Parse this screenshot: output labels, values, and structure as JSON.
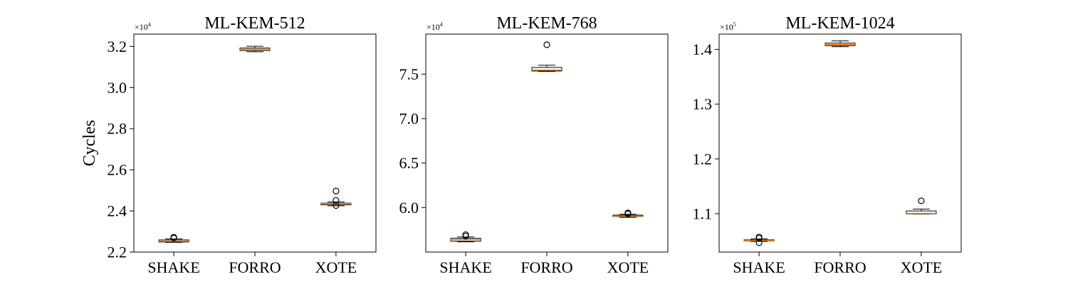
{
  "chart_data": [
    {
      "type": "box",
      "title": "ML-KEM-512",
      "ylabel": "Cycles",
      "multiplier": {
        "base": "×10",
        "exp": "4"
      },
      "categories": [
        "SHAKE",
        "FORRO",
        "XOTE"
      ],
      "ylim": [
        2.2,
        3.26
      ],
      "yticks": [
        2.2,
        2.4,
        2.6,
        2.8,
        3.0,
        3.2
      ],
      "ytick_labels": [
        "2.2",
        "2.4",
        "2.6",
        "2.8",
        "3.0",
        "3.2"
      ],
      "boxes": [
        {
          "category": "SHAKE",
          "whislo": 2.247,
          "q1": 2.249,
          "med": 2.253,
          "q3": 2.259,
          "whishi": 2.264,
          "fliers": [
            2.268,
            2.272
          ]
        },
        {
          "category": "FORRO",
          "whislo": 3.174,
          "q1": 3.18,
          "med": 3.186,
          "q3": 3.192,
          "whishi": 3.201,
          "fliers": []
        },
        {
          "category": "XOTE",
          "whislo": 2.425,
          "q1": 2.43,
          "med": 2.435,
          "q3": 2.438,
          "whishi": 2.444,
          "fliers": [
            2.426,
            2.451,
            2.497
          ]
        }
      ]
    },
    {
      "type": "box",
      "title": "ML-KEM-768",
      "ylabel": "",
      "multiplier": {
        "base": "×10",
        "exp": "4"
      },
      "categories": [
        "SHAKE",
        "FORRO",
        "XOTE"
      ],
      "ylim": [
        5.5,
        7.95
      ],
      "yticks": [
        6.0,
        6.5,
        7.0,
        7.5
      ],
      "ytick_labels": [
        "6.0",
        "6.5",
        "7.0",
        "7.5"
      ],
      "boxes": [
        {
          "category": "SHAKE",
          "whislo": 5.615,
          "q1": 5.622,
          "med": 5.64,
          "q3": 5.655,
          "whishi": 5.67,
          "fliers": [
            5.68,
            5.695
          ]
        },
        {
          "category": "FORRO",
          "whislo": 7.53,
          "q1": 7.535,
          "med": 7.545,
          "q3": 7.575,
          "whishi": 7.6,
          "fliers": [
            7.83
          ]
        },
        {
          "category": "XOTE",
          "whislo": 5.89,
          "q1": 5.9,
          "med": 5.905,
          "q3": 5.915,
          "whishi": 5.925,
          "fliers": [
            5.93,
            5.94
          ]
        }
      ]
    },
    {
      "type": "box",
      "title": "ML-KEM-1024",
      "ylabel": "",
      "multiplier": {
        "base": "×10",
        "exp": "5"
      },
      "categories": [
        "SHAKE",
        "FORRO",
        "XOTE"
      ],
      "ylim": [
        1.03,
        1.428
      ],
      "yticks": [
        1.1,
        1.2,
        1.3,
        1.4
      ],
      "ytick_labels": [
        "1.1",
        "1.2",
        "1.3",
        "1.4"
      ],
      "boxes": [
        {
          "category": "SHAKE",
          "whislo": 1.0495,
          "q1": 1.0505,
          "med": 1.0515,
          "q3": 1.0525,
          "whishi": 1.054,
          "fliers": [
            1.047,
            1.0555,
            1.0575
          ]
        },
        {
          "category": "FORRO",
          "whislo": 1.405,
          "q1": 1.407,
          "med": 1.409,
          "q3": 1.4115,
          "whishi": 1.4155,
          "fliers": []
        },
        {
          "category": "XOTE",
          "whislo": 1.0995,
          "q1": 1.0997,
          "med": 1.1005,
          "q3": 1.105,
          "whishi": 1.1085,
          "fliers": [
            1.1235
          ]
        }
      ]
    }
  ],
  "colors": {
    "median": "#ff7f0e",
    "box": "#000000",
    "background": "#ffffff"
  }
}
